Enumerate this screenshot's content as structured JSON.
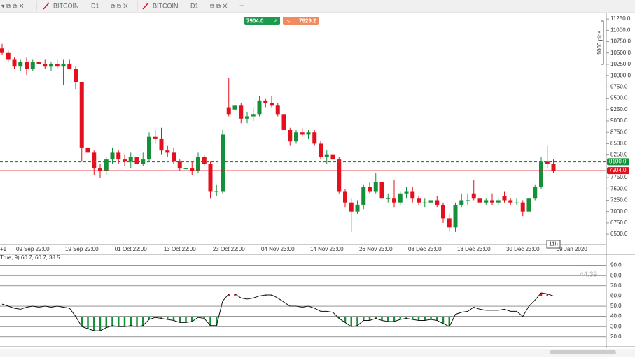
{
  "tabs": [
    {
      "label": "BITCOIN",
      "timeframe": "D1"
    },
    {
      "label": "BITCOIN",
      "timeframe": "D1"
    }
  ],
  "bid": "7904.0",
  "ask": "7929.2",
  "pips_label": "1000 pips",
  "countdown": "11h",
  "chart_data": {
    "type": "candlestick",
    "up_color": "#14903a",
    "down_color": "#e3101e",
    "open": [
      10600,
      10500,
      10350,
      10200,
      10300,
      10150,
      10300,
      10250,
      10200,
      10250,
      10200,
      10250,
      10150,
      9850,
      8400,
      8300,
      7950,
      7900,
      8150,
      8300,
      8150,
      8100,
      8200,
      8050,
      8150,
      8650,
      8600,
      8350,
      8300,
      8100,
      7950,
      7950,
      7900,
      8200,
      8050,
      7450,
      7450,
      9300,
      9250,
      9350,
      9050,
      9100,
      9150,
      9450,
      9400,
      9350,
      9150,
      8800,
      8550,
      8750,
      8700,
      8750,
      8500,
      8200,
      8250,
      8150,
      7450,
      7200,
      7000,
      7150,
      7550,
      7450,
      7650,
      7300,
      7300,
      7200,
      7400,
      7450,
      7300,
      7200,
      7200,
      7250,
      7150,
      6850,
      6650,
      7150,
      7250,
      7400,
      7300,
      7200,
      7250,
      7200,
      7350,
      7250,
      7200,
      7200,
      7000,
      7300,
      7550,
      8100,
      8050
    ],
    "high": [
      10700,
      10550,
      10400,
      10350,
      10400,
      10350,
      10450,
      10350,
      10300,
      10350,
      10350,
      10350,
      10200,
      9850,
      8700,
      8350,
      8050,
      8200,
      8400,
      8350,
      8250,
      8300,
      8250,
      8300,
      8750,
      8800,
      8850,
      8450,
      8400,
      8150,
      8050,
      8100,
      8300,
      8250,
      8100,
      7600,
      8800,
      9950,
      9450,
      9400,
      9200,
      9300,
      9550,
      9500,
      9550,
      9400,
      9200,
      8850,
      8800,
      8850,
      8800,
      8800,
      8550,
      8350,
      8300,
      8200,
      7500,
      7300,
      7250,
      7600,
      7650,
      7850,
      7700,
      7400,
      7700,
      7450,
      7550,
      7550,
      7350,
      7300,
      7300,
      7350,
      7200,
      6950,
      7200,
      7400,
      7400,
      7700,
      7350,
      7300,
      7400,
      7300,
      7450,
      7300,
      7300,
      7250,
      7350,
      7600,
      8200,
      8450,
      8150
    ],
    "low": [
      10450,
      10300,
      10150,
      10100,
      10000,
      10100,
      10200,
      10150,
      10100,
      10150,
      9800,
      10150,
      9700,
      8100,
      8050,
      7800,
      7750,
      7800,
      8050,
      8050,
      8000,
      7950,
      7800,
      8000,
      8100,
      8500,
      8250,
      8200,
      8050,
      7900,
      7850,
      7800,
      7850,
      8000,
      7300,
      7350,
      7400,
      9100,
      9150,
      8950,
      8950,
      9000,
      9100,
      9300,
      9300,
      9100,
      8700,
      8450,
      8500,
      8650,
      8600,
      8450,
      8150,
      8050,
      8100,
      7400,
      7100,
      6550,
      6950,
      7050,
      7400,
      7400,
      7250,
      7200,
      7100,
      7150,
      7300,
      7200,
      7150,
      7100,
      7150,
      7100,
      6750,
      6550,
      6550,
      7100,
      7150,
      7250,
      7150,
      7150,
      7150,
      7150,
      7200,
      7150,
      7150,
      6900,
      6950,
      7250,
      7500,
      7950,
      7850
    ],
    "close": [
      10500,
      10350,
      10200,
      10300,
      10150,
      10300,
      10250,
      10200,
      10250,
      10200,
      10250,
      10150,
      9850,
      8400,
      8300,
      7950,
      7900,
      8150,
      8300,
      8150,
      8100,
      8200,
      8050,
      8150,
      8650,
      8600,
      8350,
      8300,
      8100,
      7950,
      7950,
      7900,
      8200,
      8050,
      7450,
      7450,
      8700,
      9150,
      9350,
      9050,
      9100,
      9150,
      9450,
      9400,
      9350,
      9150,
      8800,
      8550,
      8750,
      8700,
      8750,
      8500,
      8200,
      8250,
      8150,
      7450,
      7200,
      7000,
      7150,
      7550,
      7450,
      7650,
      7300,
      7300,
      7200,
      7400,
      7450,
      7300,
      7200,
      7200,
      7250,
      7150,
      6850,
      6650,
      7150,
      7250,
      7250,
      7300,
      7200,
      7250,
      7200,
      7250,
      7250,
      7200,
      7200,
      7000,
      7300,
      7550,
      8100,
      8050,
      7904
    ],
    "x_overflow_label": "+1",
    "x_labels": [
      "09 Sep 22:00",
      "19 Sep 22:00",
      "01 Oct 22:00",
      "13 Oct 22:00",
      "23 Oct 22:00",
      "04 Nov 23:00",
      "14 Nov 23:00",
      "26 Nov 23:00",
      "08 Dec 23:00",
      "18 Dec 23:00",
      "30 Dec 23:00",
      "09 Jan 2020"
    ],
    "ylim": [
      6270,
      11360
    ],
    "yticks": [
      {
        "value": 6500,
        "label": "6500.0"
      },
      {
        "value": 6750,
        "label": "6750.0"
      },
      {
        "value": 7000,
        "label": "7000.0"
      },
      {
        "value": 7250,
        "label": "7250.0"
      },
      {
        "value": 7500,
        "label": "7500.0"
      },
      {
        "value": 7750,
        "label": "7750.0"
      },
      {
        "value": 8250,
        "label": "8250.0"
      },
      {
        "value": 8500,
        "label": "8500.0"
      },
      {
        "value": 8750,
        "label": "8750.0"
      },
      {
        "value": 9000,
        "label": "9000.0"
      },
      {
        "value": 9250,
        "label": "9250.0"
      },
      {
        "value": 9500,
        "label": "9500.0"
      },
      {
        "value": 9750,
        "label": "9750.0"
      },
      {
        "value": 10000,
        "label": "10000.0"
      },
      {
        "value": 10250,
        "label": "10250.0"
      },
      {
        "value": 10500,
        "label": "10500.0"
      },
      {
        "value": 10750,
        "label": "10750.0"
      },
      {
        "value": 11000,
        "label": "11000.0"
      },
      {
        "value": 11250,
        "label": "11250.0"
      }
    ],
    "alert_line": {
      "value": 8100,
      "label": "8100.0",
      "color": "#14903a"
    },
    "last_price": {
      "value": 7904,
      "label": "7904.0",
      "color": "#e3101e"
    }
  },
  "indicator": {
    "header": "True, 9) 60.7, 60.7, 38.5",
    "watermark": "44.39",
    "values": [
      52,
      50,
      48,
      47,
      49,
      50,
      49,
      50,
      49,
      50,
      49,
      48,
      40,
      30,
      28,
      26,
      26,
      29,
      31,
      30,
      30,
      31,
      30,
      31,
      37,
      39,
      38,
      37,
      36,
      34,
      34,
      35,
      39,
      38,
      31,
      31,
      55,
      62,
      62,
      58,
      57,
      58,
      60,
      61,
      61,
      58,
      54,
      50,
      50,
      49,
      50,
      48,
      45,
      45,
      44,
      38,
      34,
      30,
      31,
      36,
      36,
      38,
      36,
      35,
      35,
      37,
      38,
      37,
      36,
      36,
      37,
      36,
      33,
      30,
      42,
      44,
      45,
      49,
      47,
      46,
      46,
      46,
      47,
      45,
      45,
      40,
      50,
      56,
      63,
      62,
      60
    ],
    "lower_level": 40,
    "upper_level": 60,
    "ylim": [
      11,
      100
    ],
    "yticks": [
      {
        "value": 20,
        "label": "20.0"
      },
      {
        "value": 30,
        "label": "30.0"
      },
      {
        "value": 40,
        "label": "40.0"
      },
      {
        "value": 50,
        "label": "50.0"
      },
      {
        "value": 60,
        "label": "60.0"
      },
      {
        "value": 70,
        "label": "70.0"
      },
      {
        "value": 80,
        "label": "80.0"
      },
      {
        "value": 90,
        "label": "90.0"
      }
    ]
  }
}
